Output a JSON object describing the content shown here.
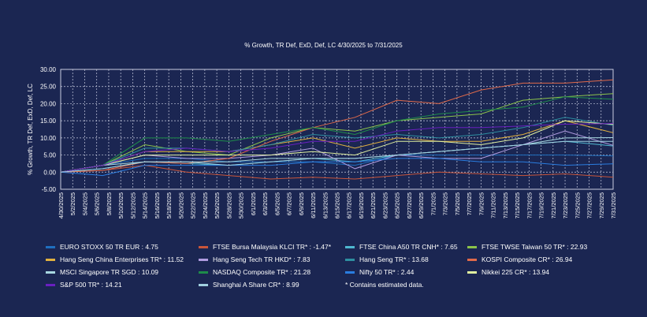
{
  "chart_data": {
    "type": "line",
    "title": "% Growth, TR Def, ExD, Def, LC 4/30/2025 to 7/31/2025",
    "ylabel": "% Growth, TR Def, ExD, Def, LC",
    "xlabel": "",
    "ylim": [
      -5,
      30
    ],
    "yticks": [
      "30.00",
      "25.00",
      "20.00",
      "15.00",
      "10.00",
      "5.00",
      "0.00",
      "-5.00"
    ],
    "grid": true,
    "legend_position": "bottom",
    "xticks": [
      "4/30/2025",
      "5/2/2025",
      "5/4/2025",
      "5/6/2025",
      "5/8/2025",
      "5/10/2025",
      "5/12/2025",
      "5/14/2025",
      "5/16/2025",
      "5/18/2025",
      "5/20/2025",
      "5/22/2025",
      "5/24/2025",
      "5/26/2025",
      "5/28/2025",
      "5/30/2025",
      "6/1/2025",
      "6/3/2025",
      "6/5/2025",
      "6/7/2025",
      "6/9/2025",
      "6/11/2025",
      "6/13/2025",
      "6/15/2025",
      "6/17/2025",
      "6/19/2025",
      "6/21/2025",
      "6/23/2025",
      "6/25/2025",
      "6/27/2025",
      "6/29/2025",
      "7/1/2025",
      "7/3/2025",
      "7/5/2025",
      "7/7/2025",
      "7/9/2025",
      "7/11/2025",
      "7/13/2025",
      "7/15/2025",
      "7/17/2025",
      "7/19/2025",
      "7/21/2025",
      "7/23/2025",
      "7/25/2025",
      "7/27/2025",
      "7/29/2025",
      "7/31/2025"
    ],
    "x": [
      "4/30/2025",
      "5/7/2025",
      "5/14/2025",
      "5/21/2025",
      "5/28/2025",
      "6/4/2025",
      "6/11/2025",
      "6/18/2025",
      "6/25/2025",
      "7/2/2025",
      "7/9/2025",
      "7/16/2025",
      "7/23/2025",
      "7/31/2025"
    ],
    "series": [
      {
        "name": "EURO STOXX 50 TR EUR : 4.75",
        "color": "#1f6fbf",
        "values": [
          0,
          2,
          4,
          4,
          3,
          3,
          3,
          2,
          5,
          5,
          5,
          5,
          5,
          4.75
        ]
      },
      {
        "name": "FTSE Bursa Malaysia KLCI TR* : -1.47*",
        "color": "#c9553a",
        "values": [
          0,
          0.5,
          2,
          0,
          -1,
          -2,
          -1.5,
          -2,
          -1,
          0,
          -0.5,
          -1,
          -0.5,
          -1.47
        ]
      },
      {
        "name": "FTSE China A50 TR CNH* : 7.65",
        "color": "#4fb8d0",
        "values": [
          0,
          1,
          3,
          2.5,
          2,
          3,
          4,
          3,
          5,
          6,
          7,
          8,
          9,
          7.65
        ]
      },
      {
        "name": "FTSE TWSE Taiwan 50 TR* : 22.93",
        "color": "#8bc34a",
        "values": [
          0,
          2,
          8,
          6,
          5,
          10,
          13,
          12,
          15,
          16,
          17,
          21,
          22,
          22.93
        ]
      },
      {
        "name": "Hang Seng China Enterprises TR* : 11.52",
        "color": "#e0b040",
        "values": [
          0,
          2,
          6,
          6,
          6,
          8,
          10,
          7,
          10,
          9,
          9,
          11,
          15,
          11.52
        ]
      },
      {
        "name": "Hang Seng Tech TR HKD* : 7.83",
        "color": "#b09ce0",
        "values": [
          0,
          2,
          5,
          4,
          4,
          5,
          7,
          1,
          5,
          4,
          4,
          8,
          12,
          7.83
        ]
      },
      {
        "name": "Hang Seng TR* : 13.68",
        "color": "#2e8fa0",
        "values": [
          0,
          2,
          7,
          7,
          6,
          8,
          11,
          10,
          11,
          10,
          11,
          13,
          16,
          13.68
        ]
      },
      {
        "name": "KOSPI Composite CR* : 26.94",
        "color": "#e06a4a",
        "values": [
          0,
          0.5,
          3,
          2.5,
          4,
          9,
          13,
          16,
          21,
          20,
          24,
          26,
          26,
          26.94
        ]
      },
      {
        "name": "MSCI Singapore TR SGD : 10.09",
        "color": "#a8d8e0",
        "values": [
          0,
          2,
          3,
          3,
          3,
          4,
          4,
          4,
          5,
          6,
          7,
          8,
          10,
          10.09
        ]
      },
      {
        "name": "NASDAQ Composite TR* : 21.28",
        "color": "#1e8c4a",
        "values": [
          0,
          2,
          10,
          10,
          9,
          11,
          13,
          11,
          15,
          17,
          18,
          19,
          22,
          21.28
        ]
      },
      {
        "name": "Nifty 50 TR* : 2.44",
        "color": "#2a7de0",
        "values": [
          0,
          -1,
          2,
          2,
          2,
          2,
          3,
          3,
          4,
          4,
          3,
          3,
          2,
          2.44
        ]
      },
      {
        "name": "Nikkei 225 CR* : 13.94",
        "color": "#e0f0a0",
        "values": [
          0,
          2,
          5,
          5,
          5,
          5,
          6,
          5,
          9,
          9,
          8,
          10,
          15,
          13.94
        ]
      },
      {
        "name": "S&P 500 TR* : 14.21",
        "color": "#6a1fc0",
        "values": [
          0,
          2,
          6,
          7,
          6,
          7,
          9,
          9,
          12,
          13,
          13,
          13.5,
          14,
          14.21
        ]
      },
      {
        "name": "Shanghai A Share CR* : 8.99",
        "color": "#a0d0e0",
        "values": [
          0,
          1,
          3,
          3,
          2,
          3,
          4,
          4,
          5,
          6,
          7,
          8,
          9,
          8.99
        ]
      }
    ],
    "note": "* Contains estimated data."
  }
}
